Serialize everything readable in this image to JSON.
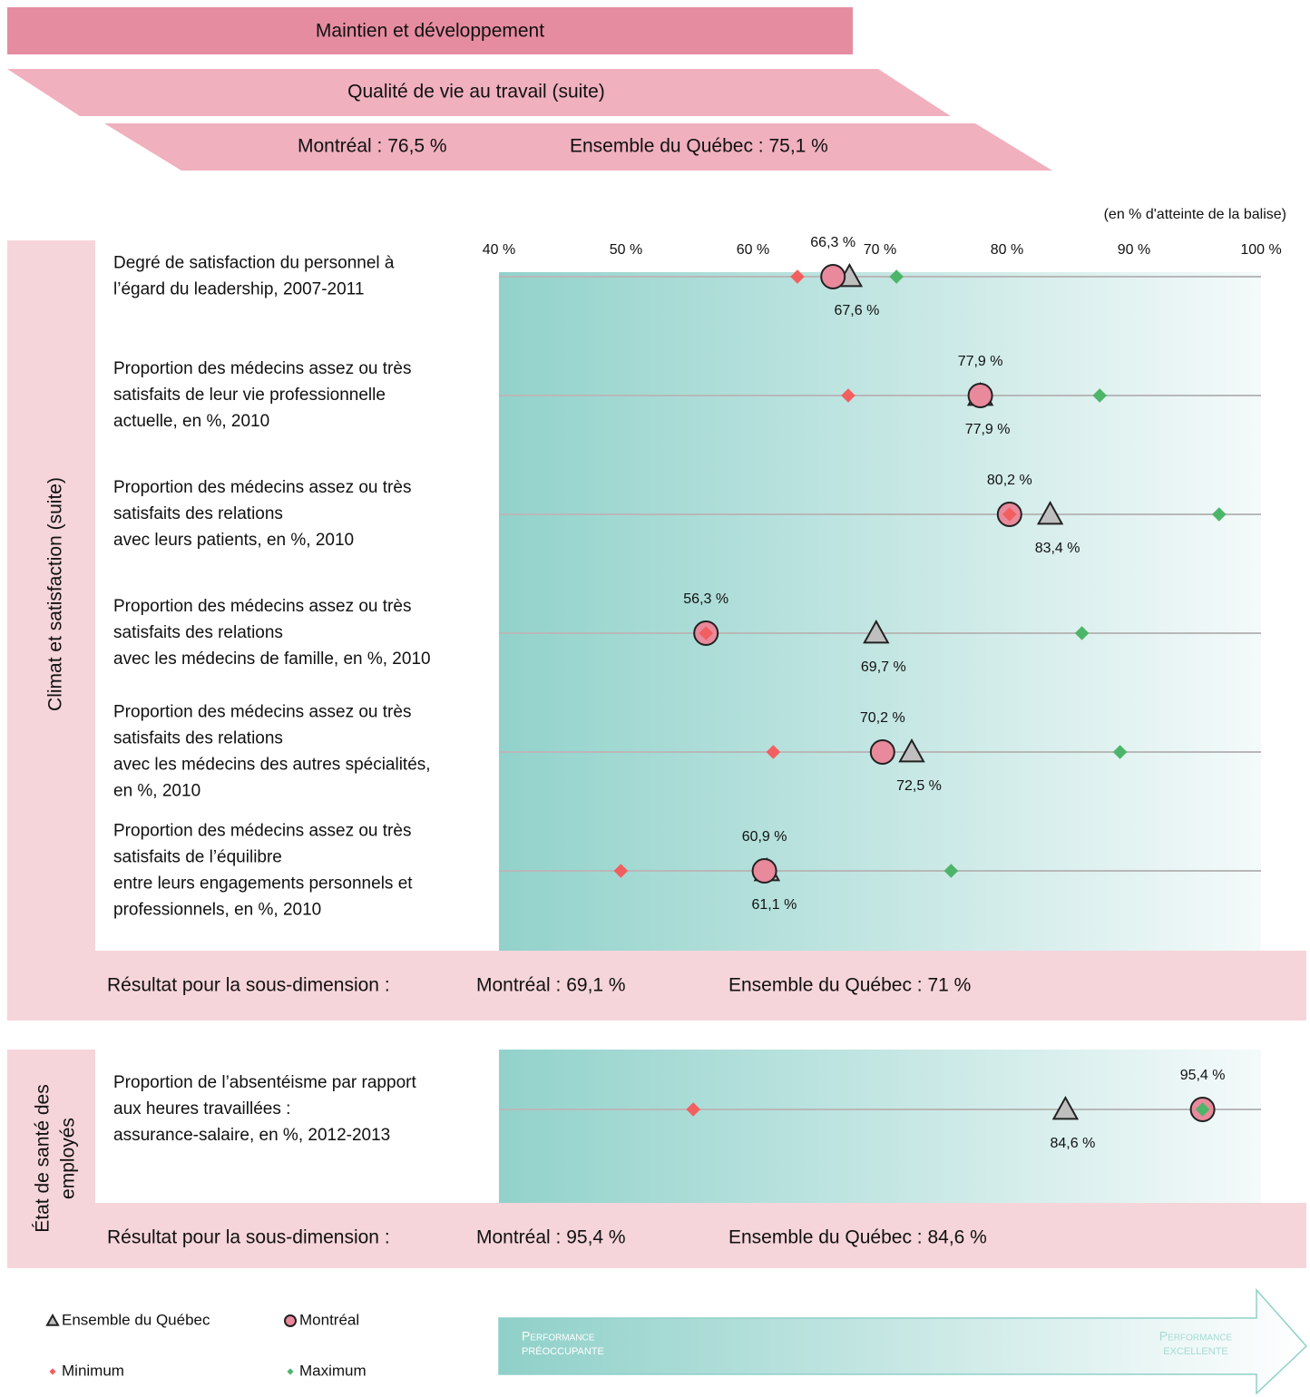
{
  "header": {
    "title": "Maintien et développement",
    "subtitle": "Qualité de vie au travail (suite)",
    "scores": [
      "Montréal : 76,5 %",
      "Ensemble du Québec : 75,1 %"
    ]
  },
  "chart_data": {
    "type": "dotplot",
    "axis_note": "(en % d'atteinte de la balise)",
    "xlim": [
      40,
      100
    ],
    "xticks": [
      {
        "value": 40,
        "label": "40 %"
      },
      {
        "value": 50,
        "label": "50 %"
      },
      {
        "value": 60,
        "label": "60 %"
      },
      {
        "value": 70,
        "label": "70 %"
      },
      {
        "value": 80,
        "label": "80 %"
      },
      {
        "value": 90,
        "label": "90 %"
      },
      {
        "value": 100,
        "label": "100 %"
      }
    ],
    "sections": [
      {
        "title": [
          "Climat et satisfaction (suite)"
        ],
        "categories": [
          [
            "Degré de satisfaction du personnel à",
            "l’égard du leadership, 2007-2011"
          ],
          [
            "Proportion des médecins assez ou très",
            "satisfaits de leur vie professionnelle",
            "actuelle, en %, 2010"
          ],
          [
            "Proportion des médecins assez ou très",
            "satisfaits des relations",
            "avec leurs patients, en %, 2010"
          ],
          [
            "Proportion des médecins assez ou très",
            "satisfaits des relations",
            "avec les médecins de famille, en %, 2010"
          ],
          [
            "Proportion des médecins assez ou très",
            "satisfaits des relations",
            "avec les médecins des autres spécialités,",
            "en %, 2010"
          ],
          [
            "Proportion des médecins assez ou très",
            "satisfaits de l’équilibre",
            "entre leurs engagements personnels et",
            "professionnels, en %, 2010"
          ]
        ],
        "result_title": "Résultat pour la sous-dimension :",
        "result": [
          "Montréal : 69,1 %",
          "Ensemble du Québec : 71 %"
        ]
      },
      {
        "title": [
          "État de santé des",
          "employés"
        ],
        "categories": [
          [
            "Proportion de l’absentéisme par rapport",
            "aux heures travaillées  :",
            "assurance-salaire, en %, 2012-2013"
          ]
        ],
        "result_title": "Résultat pour la sous-dimension :",
        "result": [
          "Montréal : 95,4 %",
          "Ensemble du Québec : 84,6 %"
        ]
      }
    ],
    "series": [
      {
        "name": "Ensemble du Québec",
        "color": "#bfbfbf",
        "marker": "triangle",
        "label_position": "below",
        "values": [
          67.6,
          77.9,
          83.4,
          69.7,
          72.5,
          61.1,
          84.6
        ],
        "value_labels": [
          "67,6 %",
          "77,9 %",
          "83,4 %",
          "69,7 %",
          "72,5 %",
          "61,1 %",
          "84,6 %"
        ]
      },
      {
        "name": "Montréal",
        "color": "#e8899c",
        "marker": "circle",
        "label_position": "above",
        "values": [
          66.3,
          77.9,
          80.2,
          56.3,
          70.2,
          60.9,
          95.4
        ],
        "value_labels": [
          "66,3 %",
          "77,9 %",
          "80,2 %",
          "56,3 %",
          "70,2 %",
          "60,9 %",
          "95,4 %"
        ]
      },
      {
        "name": "Minimum",
        "color": "#f25f5f",
        "marker": "diamond",
        "values": [
          63.5,
          67.5,
          80.2,
          56.3,
          61.6,
          49.6,
          55.3
        ]
      },
      {
        "name": "Maximum",
        "color": "#4db56a",
        "marker": "diamond",
        "values": [
          71.3,
          87.3,
          96.7,
          85.9,
          88.9,
          75.6,
          95.4
        ]
      }
    ],
    "arrow": {
      "left": [
        "Performance",
        "préoccupante"
      ],
      "right": [
        "Performance",
        "excellente"
      ]
    }
  }
}
